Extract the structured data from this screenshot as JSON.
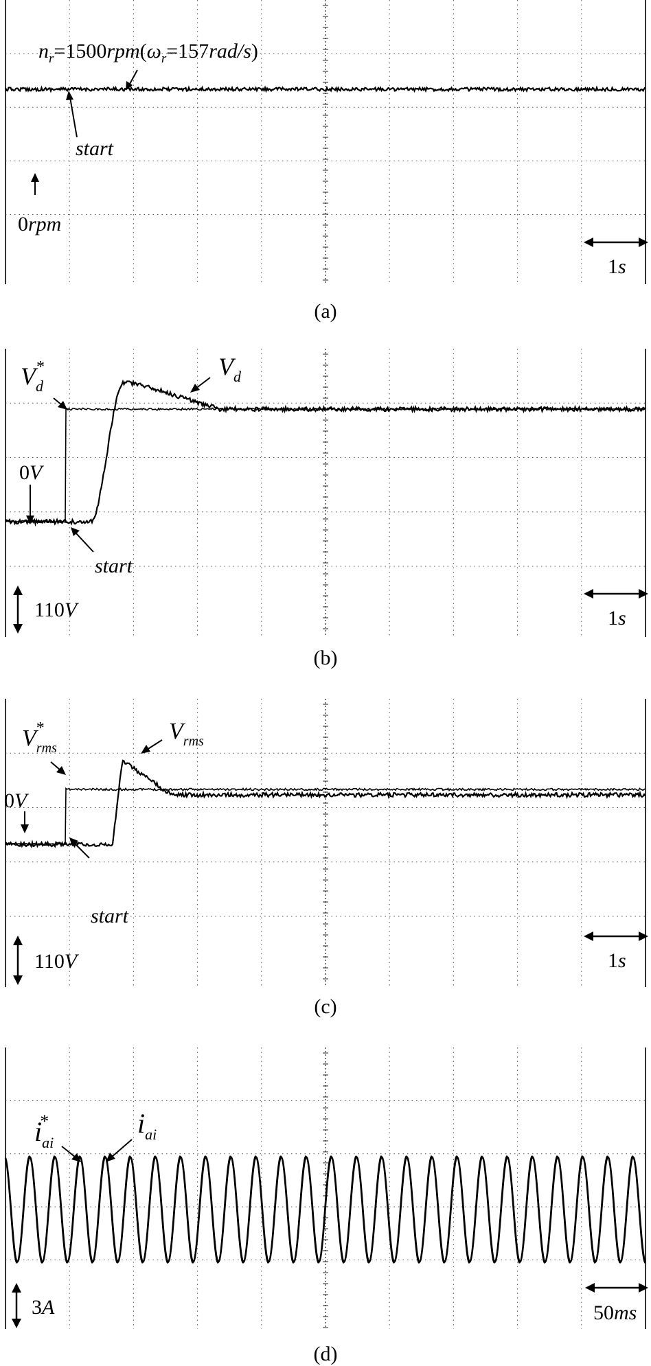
{
  "chart_data": [
    {
      "type": "line",
      "panel": "a",
      "caption": "(a)",
      "grid": true,
      "series": [
        {
          "name": "n_r",
          "level": 1500,
          "unit": "rpm"
        }
      ],
      "annotations": {
        "speed_label": {
          "n": "n",
          "sub_r": "r",
          "eq": "=1500",
          "rpm": "rpm",
          "open": "(",
          "omega": "ω",
          "eq2": "=157",
          "rad": "rad",
          "slash": "/",
          "s": "s",
          "close": ")"
        },
        "start": "start",
        "zero": {
          "num": "0",
          "unit": "rpm"
        },
        "time_scale": {
          "num": "1",
          "unit": "s"
        }
      }
    },
    {
      "type": "line",
      "panel": "b",
      "caption": "(b)",
      "grid": true,
      "series": [
        {
          "name": "V_d*",
          "role": "reference"
        },
        {
          "name": "V_d",
          "role": "measured"
        }
      ],
      "annotations": {
        "ref_label": {
          "v": "V",
          "sub": "d",
          "sup": "*"
        },
        "meas_label": {
          "v": "V",
          "sub": "d"
        },
        "zero": {
          "num": "0",
          "unit": "V"
        },
        "start": "start",
        "volt_scale": {
          "num": "110",
          "unit": "V"
        },
        "time_scale": {
          "num": "1",
          "unit": "s"
        }
      }
    },
    {
      "type": "line",
      "panel": "c",
      "caption": "(c)",
      "grid": true,
      "series": [
        {
          "name": "V_rms*",
          "role": "reference"
        },
        {
          "name": "V_rms",
          "role": "measured"
        }
      ],
      "annotations": {
        "ref_label": {
          "v": "V",
          "sub": "rms",
          "sup": "*"
        },
        "meas_label": {
          "v": "V",
          "sub": "rms"
        },
        "zero": {
          "num": "0",
          "unit": "V"
        },
        "start": "start",
        "volt_scale": {
          "num": "110",
          "unit": "V"
        },
        "time_scale": {
          "num": "1",
          "unit": "s"
        }
      }
    },
    {
      "type": "line",
      "panel": "d",
      "caption": "(d)",
      "grid": true,
      "series": [
        {
          "name": "i_ai*",
          "role": "reference"
        },
        {
          "name": "i_ai",
          "role": "measured"
        }
      ],
      "annotations": {
        "ref_label": {
          "i": "i",
          "sub": "ai",
          "sup": "*"
        },
        "meas_label": {
          "i": "i",
          "sub": "ai"
        },
        "current_scale": {
          "num": "3",
          "unit": "A"
        },
        "time_scale": {
          "num": "50",
          "unit": "ms"
        }
      }
    }
  ]
}
